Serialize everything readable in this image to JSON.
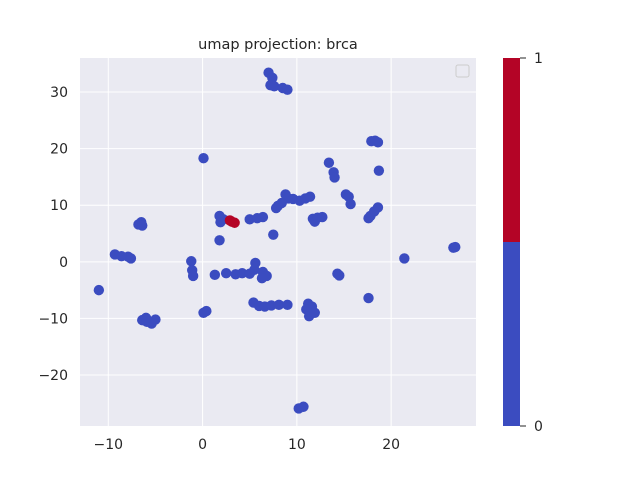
{
  "chart_data": {
    "type": "scatter",
    "title": "umap projection: brca",
    "xlabel": "",
    "ylabel": "",
    "xlim": [
      -13,
      29
    ],
    "ylim": [
      -29,
      36
    ],
    "xticks": [
      -10,
      0,
      10,
      20
    ],
    "yticks": [
      -20,
      -10,
      0,
      10,
      20,
      30
    ],
    "tick_labels": {
      "x": [
        "−10",
        "0",
        "10",
        "20"
      ],
      "y": [
        "−20",
        "−10",
        "0",
        "10",
        "20",
        "30"
      ]
    },
    "grid": true,
    "legend": {
      "placement": "top-right",
      "entries": []
    },
    "colorbar": {
      "ticks": [
        0,
        1
      ],
      "tick_labels": [
        "0",
        "1"
      ],
      "colors": {
        "0": "#3b4cc0",
        "1": "#b40426"
      },
      "split": 0.5
    },
    "series": [
      {
        "name": "0",
        "color": "#3b4cc0",
        "points": [
          [
            7.0,
            33.4
          ],
          [
            7.4,
            32.5
          ],
          [
            7.2,
            31.2
          ],
          [
            7.6,
            31.0
          ],
          [
            8.5,
            30.7
          ],
          [
            9.0,
            30.4
          ],
          [
            0.1,
            18.3
          ],
          [
            13.4,
            17.5
          ],
          [
            13.9,
            15.8
          ],
          [
            14.0,
            14.9
          ],
          [
            17.9,
            21.3
          ],
          [
            18.3,
            21.4
          ],
          [
            18.6,
            21.1
          ],
          [
            18.7,
            16.1
          ],
          [
            15.2,
            11.9
          ],
          [
            15.5,
            11.5
          ],
          [
            15.7,
            10.2
          ],
          [
            18.6,
            9.6
          ],
          [
            18.2,
            8.9
          ],
          [
            17.8,
            8.1
          ],
          [
            17.6,
            7.7
          ],
          [
            8.8,
            11.9
          ],
          [
            9.1,
            11.2
          ],
          [
            9.6,
            11.1
          ],
          [
            10.3,
            10.8
          ],
          [
            10.9,
            11.2
          ],
          [
            11.4,
            11.5
          ],
          [
            8.4,
            10.4
          ],
          [
            8.0,
            9.9
          ],
          [
            7.8,
            9.5
          ],
          [
            11.7,
            7.6
          ],
          [
            11.9,
            7.1
          ],
          [
            12.2,
            7.8
          ],
          [
            12.7,
            7.9
          ],
          [
            5.0,
            7.5
          ],
          [
            5.8,
            7.7
          ],
          [
            6.4,
            7.9
          ],
          [
            1.8,
            8.1
          ],
          [
            2.2,
            7.5
          ],
          [
            1.9,
            7.0
          ],
          [
            7.5,
            4.8
          ],
          [
            1.8,
            3.8
          ],
          [
            -6.5,
            7.0
          ],
          [
            -6.8,
            6.6
          ],
          [
            -6.4,
            6.4
          ],
          [
            -9.3,
            1.3
          ],
          [
            -8.6,
            1.0
          ],
          [
            -7.9,
            0.9
          ],
          [
            -7.6,
            0.6
          ],
          [
            -1.2,
            0.1
          ],
          [
            -1.1,
            -1.5
          ],
          [
            -1.0,
            -2.5
          ],
          [
            1.3,
            -2.3
          ],
          [
            2.5,
            -2.0
          ],
          [
            3.5,
            -2.2
          ],
          [
            4.2,
            -2.0
          ],
          [
            5.6,
            -0.2
          ],
          [
            5.5,
            -1.4
          ],
          [
            6.4,
            -1.8
          ],
          [
            6.8,
            -2.5
          ],
          [
            6.3,
            -2.9
          ],
          [
            5.0,
            -2.1
          ],
          [
            14.3,
            -2.1
          ],
          [
            14.5,
            -2.4
          ],
          [
            21.4,
            0.6
          ],
          [
            26.6,
            2.5
          ],
          [
            26.8,
            2.6
          ],
          [
            -11.0,
            -5.0
          ],
          [
            17.6,
            -6.4
          ],
          [
            5.4,
            -7.2
          ],
          [
            6.0,
            -7.8
          ],
          [
            6.6,
            -7.9
          ],
          [
            7.3,
            -7.7
          ],
          [
            8.1,
            -7.6
          ],
          [
            9.0,
            -7.6
          ],
          [
            11.2,
            -7.4
          ],
          [
            11.6,
            -7.9
          ],
          [
            11.0,
            -8.4
          ],
          [
            11.3,
            -9.6
          ],
          [
            11.9,
            -9.0
          ],
          [
            0.4,
            -8.7
          ],
          [
            0.1,
            -9.0
          ],
          [
            -6.4,
            -10.3
          ],
          [
            -5.9,
            -10.6
          ],
          [
            -5.4,
            -10.9
          ],
          [
            -5.0,
            -10.2
          ],
          [
            -6.0,
            -9.9
          ],
          [
            10.2,
            -25.9
          ],
          [
            10.7,
            -25.6
          ]
        ]
      },
      {
        "name": "1",
        "color": "#b40426",
        "points": [
          [
            3.1,
            7.1
          ],
          [
            3.4,
            6.9
          ],
          [
            2.9,
            7.3
          ]
        ]
      }
    ]
  }
}
